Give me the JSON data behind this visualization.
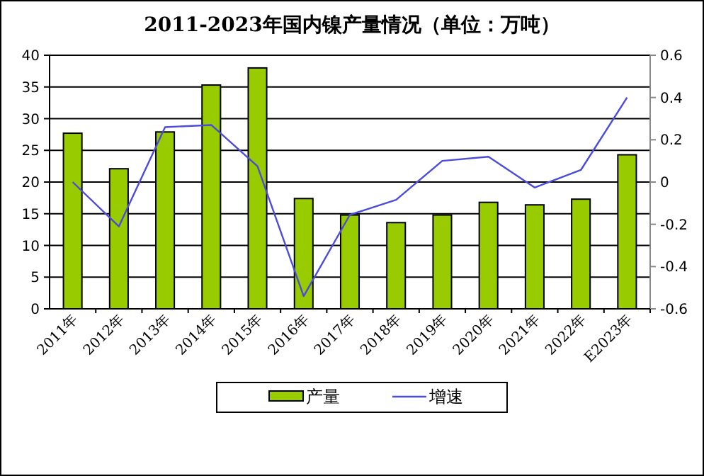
{
  "chart_data": {
    "type": "bar",
    "title": "2011-2023年国内镍产量情况（单位：万吨）",
    "categories": [
      "2011年",
      "2012年",
      "2013年",
      "2014年",
      "2015年",
      "2016年",
      "2017年",
      "2018年",
      "2019年",
      "2020年",
      "2021年",
      "2022年",
      "E2023年"
    ],
    "series": [
      {
        "name": "产量",
        "color": "#99cc00",
        "values": [
          27.7,
          22.1,
          27.9,
          35.3,
          38,
          17.4,
          14.8,
          13.6,
          14.8,
          16.8,
          16.4,
          17.3,
          24.3
        ]
      },
      {
        "name": "增速",
        "type": "line",
        "axis": "y2",
        "color": "#4b4bdc",
        "values": [
          0.0,
          -0.21,
          0.26,
          0.27,
          0.075,
          -0.54,
          -0.155,
          -0.084,
          0.1,
          0.12,
          -0.026,
          0.057,
          0.4
        ]
      }
    ],
    "ylim": [
      0,
      40
    ],
    "yticks": [
      0,
      5,
      10,
      15,
      20,
      25,
      30,
      35,
      40
    ],
    "y2lim": [
      -0.6,
      0.6
    ],
    "y2ticks": [
      -0.6,
      -0.4,
      -0.2,
      0,
      0.2,
      0.4,
      0.6
    ],
    "grid": "y",
    "legend": "bottom",
    "marker": "none",
    "line_style": "solid"
  }
}
